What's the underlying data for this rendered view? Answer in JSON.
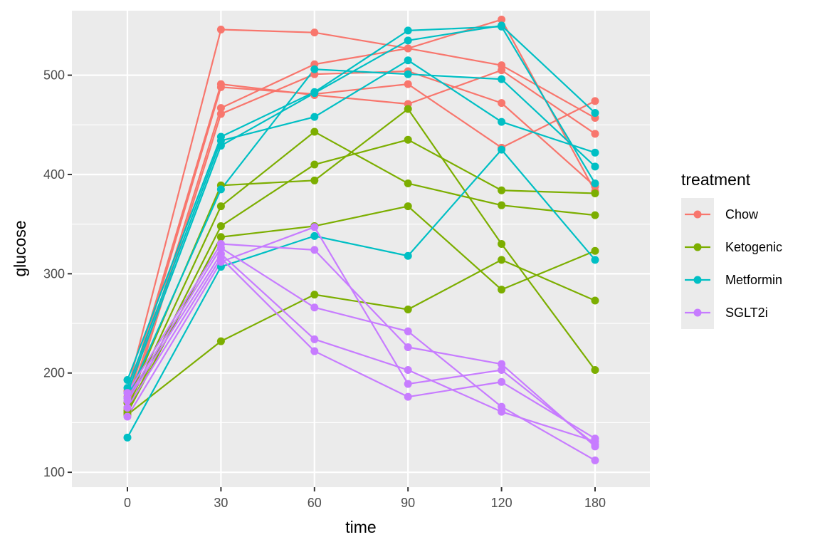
{
  "chart_data": {
    "type": "line",
    "xlabel": "time",
    "ylabel": "glucose",
    "x_ticks": [
      0,
      30,
      60,
      90,
      120,
      180
    ],
    "y_ticks": [
      100,
      200,
      300,
      400,
      500
    ],
    "xlim": [
      -18,
      168
    ],
    "ylim": [
      85,
      565
    ],
    "grid": true,
    "legend_title": "treatment",
    "legend_placement": "right",
    "groups": [
      {
        "name": "Chow",
        "color": "#F8766D",
        "series": [
          [
            182,
            546,
            543,
            527,
            556,
            383
          ],
          [
            176,
            491,
            480,
            471,
            505,
            441
          ],
          [
            170,
            488,
            481,
            491,
            427,
            474
          ],
          [
            165,
            467,
            511,
            527,
            510,
            457
          ],
          [
            160,
            461,
            501,
            504,
            472,
            388
          ]
        ]
      },
      {
        "name": "Ketogenic",
        "color": "#7CAE00",
        "series": [
          [
            170,
            389,
            394,
            466,
            330,
            203
          ],
          [
            165,
            368,
            443,
            391,
            369,
            359
          ],
          [
            162,
            348,
            410,
            435,
            384,
            381
          ],
          [
            160,
            337,
            348,
            368,
            284,
            323
          ],
          [
            158,
            232,
            279,
            264,
            314,
            273
          ]
        ]
      },
      {
        "name": "Metformin",
        "color": "#00BFC4",
        "series": [
          [
            193,
            438,
            483,
            545,
            549,
            391
          ],
          [
            185,
            434,
            458,
            515,
            453,
            422
          ],
          [
            180,
            429,
            482,
            535,
            550,
            462
          ],
          [
            175,
            385,
            506,
            501,
            496,
            408
          ],
          [
            135,
            307,
            338,
            318,
            425,
            314
          ]
        ]
      },
      {
        "name": "SGLT2i",
        "color": "#C77CFF",
        "series": [
          [
            180,
            330,
            324,
            226,
            209,
            126
          ],
          [
            175,
            326,
            266,
            242,
            166,
            112
          ],
          [
            172,
            320,
            234,
            203,
            161,
            131
          ],
          [
            165,
            316,
            222,
            176,
            191,
            134
          ],
          [
            156,
            312,
            347,
            189,
            203,
            128
          ]
        ]
      }
    ]
  }
}
